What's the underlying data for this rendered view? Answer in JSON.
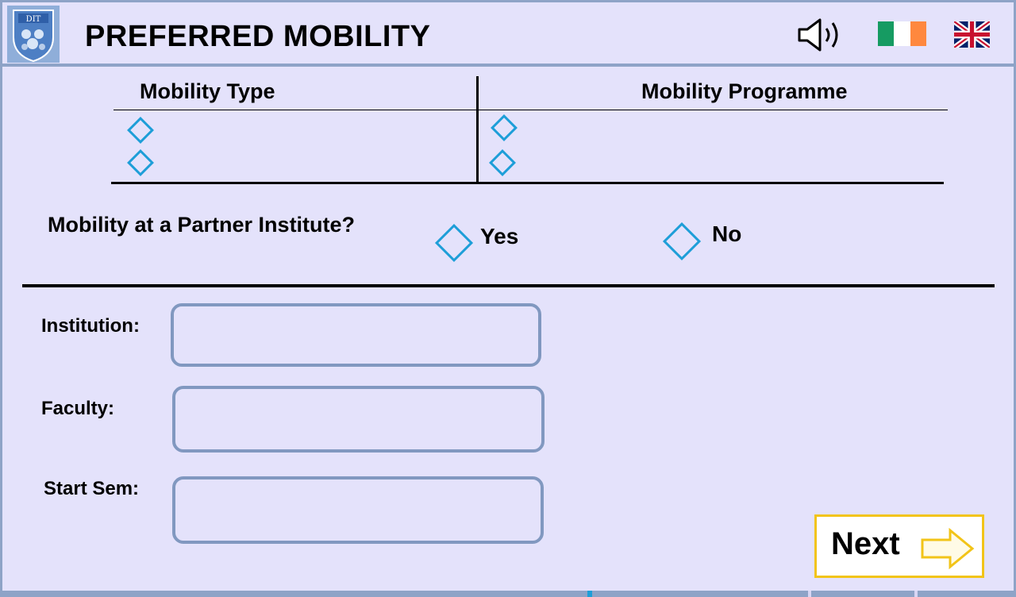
{
  "header": {
    "title": "PREFERRED MOBILITY",
    "logo_text": "DIT",
    "icons": {
      "logo": "dit-crest-icon",
      "audio": "speaker-icon",
      "irish": "ireland-flag-icon",
      "english": "uk-flag-icon"
    }
  },
  "mobility_table": {
    "col1_header": "Mobility Type",
    "col2_header": "Mobility Programme"
  },
  "partner": {
    "question": "Mobility at a Partner Institute?",
    "yes_label": "Yes",
    "no_label": "No"
  },
  "fields": {
    "institution_label": "Institution:",
    "faculty_label": "Faculty:",
    "start_sem_label": "Start Sem:"
  },
  "next": {
    "label": "Next"
  },
  "colors": {
    "background": "#e4e2fb",
    "border": "#8198c0",
    "radio": "#1d9ed8",
    "next_border": "#f2c418",
    "flag_green": "#169b62",
    "flag_orange": "#ff883e"
  }
}
